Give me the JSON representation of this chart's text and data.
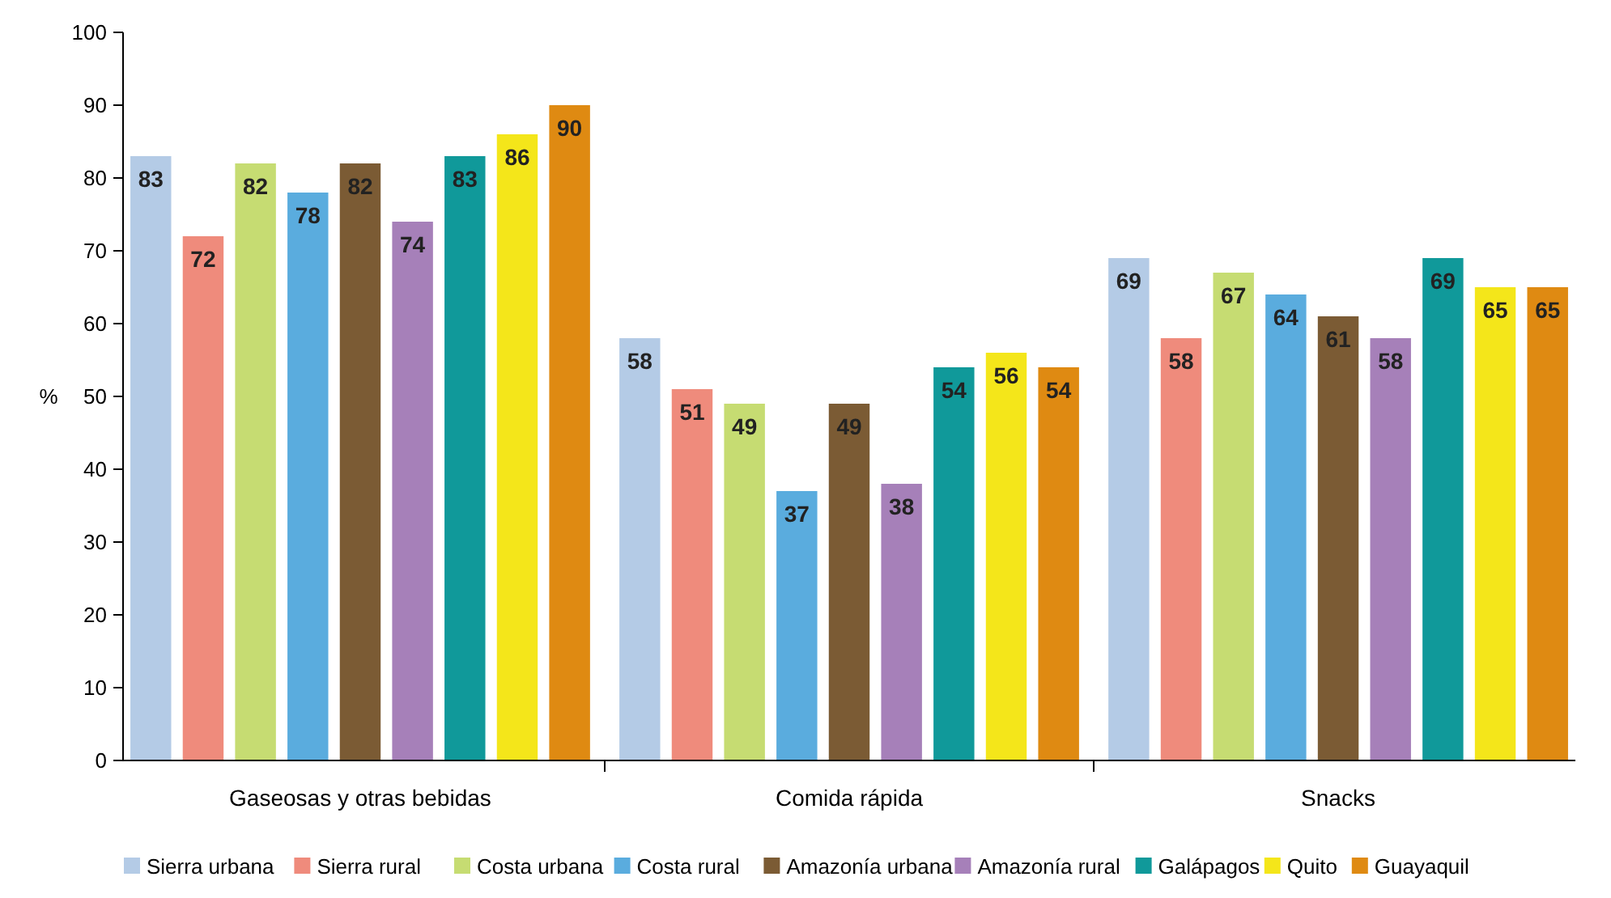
{
  "chart_data": {
    "type": "bar",
    "ylabel": "%",
    "categories": [
      "Gaseosas y otras bebidas",
      "Comida rápida",
      "Snacks"
    ],
    "series": [
      {
        "name": "Sierra urbana",
        "color": "#b4cbe6",
        "values": [
          83,
          58,
          69
        ]
      },
      {
        "name": "Sierra rural",
        "color": "#ef8b7c",
        "values": [
          72,
          51,
          58
        ]
      },
      {
        "name": "Costa urbana",
        "color": "#c6dc72",
        "values": [
          82,
          49,
          67
        ]
      },
      {
        "name": "Costa rural",
        "color": "#5aacde",
        "values": [
          78,
          37,
          64
        ]
      },
      {
        "name": "Amazonía urbana",
        "color": "#7b5b34",
        "values": [
          82,
          49,
          61
        ]
      },
      {
        "name": "Amazonía rural",
        "color": "#a680b9",
        "values": [
          74,
          38,
          58
        ]
      },
      {
        "name": "Galápagos",
        "color": "#10999a",
        "values": [
          83,
          54,
          69
        ]
      },
      {
        "name": "Quito",
        "color": "#f4e61a",
        "values": [
          86,
          56,
          65
        ]
      },
      {
        "name": "Guayaquil",
        "color": "#df8a12",
        "values": [
          90,
          54,
          65
        ]
      }
    ],
    "ylim": [
      0,
      100
    ],
    "yticks": [
      0,
      10,
      20,
      30,
      40,
      50,
      60,
      70,
      80,
      90,
      100
    ],
    "data_labels": true,
    "grid": false,
    "legend": "bottom"
  }
}
